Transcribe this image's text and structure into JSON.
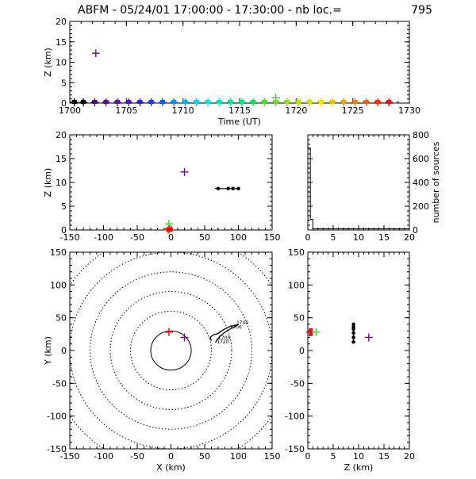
{
  "header": {
    "title": "ABFM - 05/24/01 17:00:00 - 17:30:00 - nb loc.=",
    "count": "795"
  },
  "colors": {
    "axis": "#000000",
    "purple": "#6a0d80",
    "green_cross": "#40d040",
    "red_cross": "#e01010",
    "orange_cross": "#e07000",
    "black": "#000000"
  },
  "chart_data": [
    {
      "id": "time_height",
      "type": "scatter",
      "ylabel": "Z (km)",
      "xlabel": "Time (UT)",
      "xlim": [
        1700,
        1730
      ],
      "ylim": [
        0,
        20
      ],
      "x_ticks": [
        "1700",
        "1705",
        "1710",
        "1715",
        "1720",
        "1725",
        "1730"
      ],
      "y_ticks": [
        "0",
        "5",
        "10",
        "15",
        "20"
      ],
      "points": [
        {
          "x": 1702.3,
          "y": 12.2,
          "color": "#6a0d80"
        },
        {
          "x": 1718.2,
          "y": 1.3,
          "color": "#40d040"
        }
      ],
      "baseline_points": [
        {
          "x": 1700.4,
          "y": 0,
          "color": "#000000"
        },
        {
          "x": 1701.2,
          "y": 0,
          "color": "#000000"
        },
        {
          "x": 1702.2,
          "y": 0,
          "color": "#4b0f6e"
        },
        {
          "x": 1703.2,
          "y": 0,
          "color": "#55118a"
        },
        {
          "x": 1704.2,
          "y": 0,
          "color": "#5f15a0"
        },
        {
          "x": 1705.2,
          "y": 0,
          "color": "#4a1ab5"
        },
        {
          "x": 1706.2,
          "y": 0,
          "color": "#2a2ad0"
        },
        {
          "x": 1707.2,
          "y": 0,
          "color": "#1a40e0"
        },
        {
          "x": 1708.2,
          "y": 0,
          "color": "#1060f0"
        },
        {
          "x": 1709.2,
          "y": 0,
          "color": "#1090f0"
        },
        {
          "x": 1710.2,
          "y": 0,
          "color": "#10b0f0"
        },
        {
          "x": 1711.2,
          "y": 0,
          "color": "#10d0f0"
        },
        {
          "x": 1712.2,
          "y": 0,
          "color": "#10e0e0"
        },
        {
          "x": 1713.2,
          "y": 0,
          "color": "#10e0c0"
        },
        {
          "x": 1714.2,
          "y": 0,
          "color": "#10e0a0"
        },
        {
          "x": 1715.2,
          "y": 0,
          "color": "#10e080"
        },
        {
          "x": 1716.2,
          "y": 0,
          "color": "#20e050"
        },
        {
          "x": 1717.2,
          "y": 0,
          "color": "#40e030"
        },
        {
          "x": 1718.2,
          "y": 0,
          "color": "#60e020"
        },
        {
          "x": 1719.2,
          "y": 0,
          "color": "#90e010"
        },
        {
          "x": 1720.2,
          "y": 0,
          "color": "#b0e010"
        },
        {
          "x": 1721.2,
          "y": 0,
          "color": "#d0e010"
        },
        {
          "x": 1722.2,
          "y": 0,
          "color": "#f0e010"
        },
        {
          "x": 1723.2,
          "y": 0,
          "color": "#f0c010"
        },
        {
          "x": 1724.2,
          "y": 0,
          "color": "#f0a010"
        },
        {
          "x": 1725.2,
          "y": 0,
          "color": "#f08010"
        },
        {
          "x": 1726.2,
          "y": 0,
          "color": "#f06010"
        },
        {
          "x": 1727.2,
          "y": 0,
          "color": "#f03010"
        },
        {
          "x": 1728.2,
          "y": 0,
          "color": "#e01010"
        }
      ]
    },
    {
      "id": "x_height",
      "type": "scatter",
      "ylabel": "Z (km)",
      "xlabel": "",
      "xlim": [
        -150,
        150
      ],
      "ylim": [
        0,
        20
      ],
      "x_ticks": [
        "-150",
        "-100",
        "-50",
        "0",
        "50",
        "100",
        "150"
      ],
      "y_ticks": [
        "0",
        "5",
        "10",
        "15",
        "20"
      ],
      "crosses": [
        {
          "x": 20,
          "y": 12.2,
          "color": "#6a0d80"
        },
        {
          "x": -3,
          "y": 1.3,
          "color": "#40d040"
        },
        {
          "x": -3,
          "y": 0.2,
          "color": "#e01010"
        },
        {
          "x": -4,
          "y": 0,
          "color": "#e07000"
        }
      ],
      "segment": {
        "x0": 65,
        "x1": 100,
        "y": 8.7,
        "color": "#000000"
      },
      "dots": [
        {
          "x": 70,
          "y": 8.7
        },
        {
          "x": 85,
          "y": 8.7
        },
        {
          "x": 92,
          "y": 8.7
        },
        {
          "x": 100,
          "y": 8.7
        }
      ]
    },
    {
      "id": "histogram",
      "type": "bar",
      "ylabel": "number of sources",
      "xlabel": "",
      "xlim": [
        0,
        20
      ],
      "ylim": [
        0,
        800
      ],
      "x_ticks": [
        "0",
        "5",
        "10",
        "15",
        "20"
      ],
      "y_ticks": [
        "0",
        "200",
        "400",
        "600",
        "800"
      ],
      "bins": [
        {
          "x0": 0,
          "x1": 0.5,
          "value": 690
        },
        {
          "x0": 0.5,
          "x1": 1.0,
          "value": 90
        },
        {
          "x0": 1.0,
          "x1": 20,
          "value": 10
        }
      ]
    },
    {
      "id": "plan_view",
      "type": "scatter",
      "ylabel": "Y (km)",
      "xlabel": "X (km)",
      "xlim": [
        -150,
        150
      ],
      "ylim": [
        -150,
        150
      ],
      "x_ticks": [
        "-150",
        "-100",
        "-50",
        "0",
        "50",
        "100",
        "150"
      ],
      "y_ticks": [
        "-150",
        "-100",
        "-50",
        "0",
        "50",
        "100",
        "150"
      ],
      "range_rings_km": [
        30,
        60,
        90,
        120,
        150,
        180
      ],
      "crosses": [
        {
          "x": -3,
          "y": 28,
          "color": "#e01010"
        },
        {
          "x": 20,
          "y": 20,
          "color": "#6a0d80"
        }
      ],
      "track": [
        {
          "x": 60,
          "y": 15
        },
        {
          "x": 58,
          "y": 20
        },
        {
          "x": 63,
          "y": 24
        },
        {
          "x": 70,
          "y": 26
        },
        {
          "x": 75,
          "y": 30
        },
        {
          "x": 80,
          "y": 33
        },
        {
          "x": 86,
          "y": 36
        },
        {
          "x": 93,
          "y": 38
        },
        {
          "x": 100,
          "y": 40
        },
        {
          "x": 96,
          "y": 37
        },
        {
          "x": 88,
          "y": 33
        },
        {
          "x": 80,
          "y": 28
        },
        {
          "x": 73,
          "y": 22
        },
        {
          "x": 68,
          "y": 16
        },
        {
          "x": 66,
          "y": 12
        }
      ],
      "labels": [
        {
          "text": "1700",
          "x": 97,
          "y": 40
        },
        {
          "text": "1705",
          "x": 70,
          "y": 17
        },
        {
          "text": "1720",
          "x": 68,
          "y": 11
        },
        {
          "text": "1706",
          "x": 87,
          "y": 33
        }
      ]
    },
    {
      "id": "z_y",
      "type": "scatter",
      "ylabel": "",
      "xlabel": "Z (km)",
      "xlim": [
        0,
        20
      ],
      "ylim": [
        -150,
        150
      ],
      "x_ticks": [
        "0",
        "5",
        "10",
        "15",
        "20"
      ],
      "y_ticks": [
        "-150",
        "-100",
        "-50",
        "0",
        "50",
        "100",
        "150"
      ],
      "crosses": [
        {
          "x": 0.4,
          "y": 28,
          "color": "#e01010"
        },
        {
          "x": 1.6,
          "y": 28,
          "color": "#40d040"
        },
        {
          "x": 12,
          "y": 20,
          "color": "#6a0d80"
        }
      ],
      "dots": [
        {
          "x": 9,
          "y": 40
        },
        {
          "x": 9,
          "y": 33
        },
        {
          "x": 9,
          "y": 27
        },
        {
          "x": 9,
          "y": 20
        },
        {
          "x": 9,
          "y": 13
        },
        {
          "x": 9,
          "y": 36
        }
      ],
      "cluster": {
        "x": 0.7,
        "y0": 22,
        "y1": 34,
        "color": "#e01010"
      }
    }
  ]
}
